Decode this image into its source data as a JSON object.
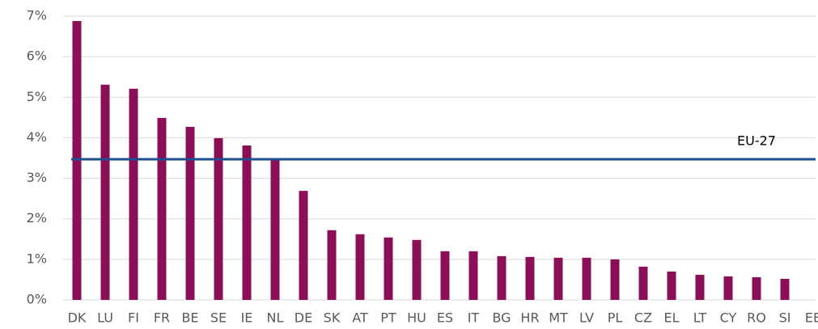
{
  "chart_data": {
    "type": "bar",
    "categories": [
      "DK",
      "LU",
      "FI",
      "FR",
      "BE",
      "SE",
      "IE",
      "NL",
      "DE",
      "SK",
      "AT",
      "PT",
      "HU",
      "ES",
      "IT",
      "BG",
      "HR",
      "MT",
      "LV",
      "PL",
      "CZ",
      "EL",
      "LT",
      "CY",
      "RO",
      "SI",
      "EE"
    ],
    "values": [
      6.88,
      5.31,
      5.21,
      4.49,
      4.27,
      3.99,
      3.81,
      3.49,
      2.69,
      1.72,
      1.62,
      1.54,
      1.48,
      1.2,
      1.2,
      1.08,
      1.06,
      1.04,
      1.04,
      1.0,
      0.82,
      0.7,
      0.62,
      0.58,
      0.56,
      0.52,
      null
    ],
    "color": "#8b0f56",
    "ylim": [
      0,
      7
    ],
    "yticks": [
      {
        "value": 0,
        "label": "0%"
      },
      {
        "value": 1,
        "label": "1%"
      },
      {
        "value": 2,
        "label": "2%"
      },
      {
        "value": 3,
        "label": "3%"
      },
      {
        "value": 4,
        "label": "4%"
      },
      {
        "value": 5,
        "label": "5%"
      },
      {
        "value": 6,
        "label": "6%"
      },
      {
        "value": 7,
        "label": "7%"
      }
    ],
    "grid": true,
    "reference": {
      "label": "EU-27",
      "value": 3.47,
      "color": "#1f4e8c"
    }
  }
}
